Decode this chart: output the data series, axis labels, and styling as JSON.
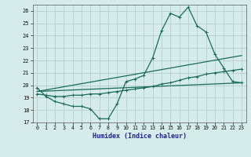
{
  "xlabel": "Humidex (Indice chaleur)",
  "bg_color": "#d5ecea",
  "grid_color": "#b8d4d0",
  "line_color": "#1a6b5a",
  "xlim": [
    -0.5,
    23.5
  ],
  "ylim": [
    17,
    26.5
  ],
  "xticks": [
    0,
    1,
    2,
    3,
    4,
    5,
    6,
    7,
    8,
    9,
    10,
    11,
    12,
    13,
    14,
    15,
    16,
    17,
    18,
    19,
    20,
    21,
    22,
    23
  ],
  "yticks": [
    17,
    18,
    19,
    20,
    21,
    22,
    23,
    24,
    25,
    26
  ],
  "line1_x": [
    0,
    1,
    2,
    3,
    4,
    5,
    6,
    7,
    8,
    9,
    10,
    11,
    12,
    13,
    14,
    15,
    16,
    17,
    18,
    19,
    20,
    21,
    22,
    23
  ],
  "line1_y": [
    19.8,
    19.1,
    18.7,
    18.5,
    18.3,
    18.3,
    18.1,
    17.3,
    17.3,
    18.5,
    20.3,
    20.5,
    20.8,
    22.2,
    24.4,
    25.8,
    25.5,
    26.3,
    24.8,
    24.3,
    22.5,
    21.4,
    20.3,
    20.2
  ],
  "line2_x": [
    0,
    1,
    2,
    3,
    4,
    5,
    6,
    7,
    8,
    9,
    10,
    11,
    12,
    13,
    14,
    15,
    16,
    17,
    18,
    19,
    20,
    21,
    22,
    23
  ],
  "line2_y": [
    19.3,
    19.2,
    19.1,
    19.1,
    19.2,
    19.2,
    19.3,
    19.3,
    19.4,
    19.5,
    19.6,
    19.7,
    19.8,
    19.9,
    20.1,
    20.2,
    20.4,
    20.6,
    20.7,
    20.9,
    21.0,
    21.1,
    21.2,
    21.3
  ],
  "line3_x": [
    0,
    23
  ],
  "line3_y": [
    19.5,
    20.2
  ],
  "line4_x": [
    0,
    23
  ],
  "line4_y": [
    19.5,
    22.4
  ]
}
